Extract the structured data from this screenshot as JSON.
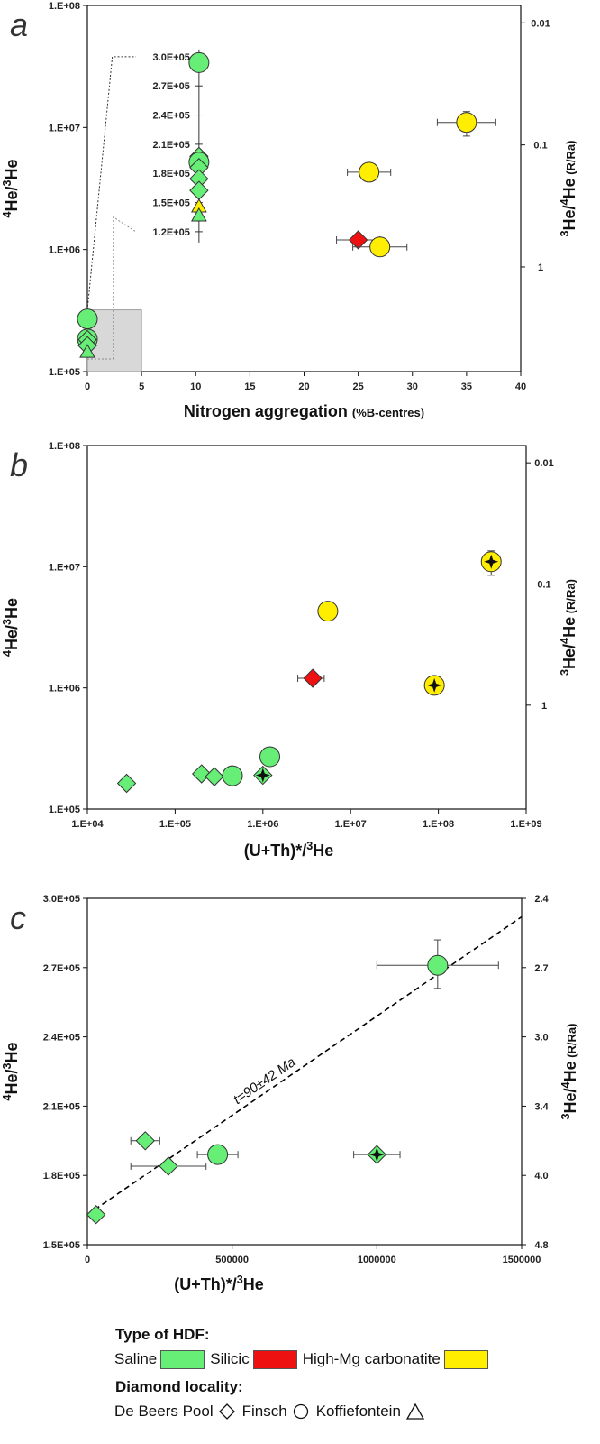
{
  "colors": {
    "saline": "#66EE77",
    "silicic": "#EE1111",
    "carbonatite": "#FFEE00",
    "shaded_box": "#D8D8D8",
    "dashed_line": "#000000"
  },
  "chart_data": [
    {
      "panel": "a",
      "type": "scatter",
      "xlabel_main": "Nitrogen aggregation",
      "xlabel_unit": "(%B-centres)",
      "ylabel": "4He/3He",
      "y2label_main": "3He/4He",
      "y2label_unit": "(R/Ra)",
      "xlim": [
        0,
        40
      ],
      "ylim": [
        100000,
        100000000
      ],
      "yscale": "log",
      "x_ticks": [
        "0",
        "5",
        "10",
        "15",
        "20",
        "25",
        "30",
        "35",
        "40"
      ],
      "y_ticks": [
        "1.E+05",
        "1.E+06",
        "1.E+07",
        "1.E+08"
      ],
      "y2_ticks": [
        "0.01",
        "0.1",
        "1"
      ],
      "inset_scale_labels": [
        "3.0E+05",
        "2.7E+05",
        "2.4E+05",
        "2.1E+05",
        "1.8E+05",
        "1.5E+05",
        "1.2E+05"
      ],
      "points": [
        {
          "x": 0,
          "y": 270000,
          "hdf": "saline",
          "locality": "Finsch"
        },
        {
          "x": 0,
          "y": 185000,
          "hdf": "saline",
          "locality": "Finsch"
        },
        {
          "x": 0,
          "y": 183000,
          "hdf": "saline",
          "locality": "De Beers Pool"
        },
        {
          "x": 0,
          "y": 163000,
          "hdf": "saline",
          "locality": "De Beers Pool"
        },
        {
          "x": 0,
          "y": 145000,
          "hdf": "saline",
          "locality": "Koffiefontein"
        },
        {
          "x": 10.3,
          "y": 34000000,
          "hdf": "saline",
          "locality": "Finsch"
        },
        {
          "x": 10.3,
          "y": 5800000,
          "hdf": "saline",
          "locality": "De Beers Pool"
        },
        {
          "x": 10.3,
          "y": 5200000,
          "hdf": "saline",
          "locality": "Finsch"
        },
        {
          "x": 10.3,
          "y": 4700000,
          "hdf": "saline",
          "locality": "De Beers Pool"
        },
        {
          "x": 10.3,
          "y": 3800000,
          "hdf": "saline",
          "locality": "De Beers Pool"
        },
        {
          "x": 10.3,
          "y": 3050000,
          "hdf": "saline",
          "locality": "De Beers Pool"
        },
        {
          "x": 10.3,
          "y": 2250000,
          "hdf": "carbonatite",
          "locality": "Koffiefontein"
        },
        {
          "x": 10.3,
          "y": 1900000,
          "hdf": "saline",
          "locality": "Koffiefontein"
        },
        {
          "x": 25,
          "y": 1200000,
          "hdf": "silicic",
          "locality": "De Beers Pool",
          "xerr": 2
        },
        {
          "x": 26,
          "y": 4300000,
          "hdf": "carbonatite",
          "locality": "Finsch",
          "xerr": 2
        },
        {
          "x": 27,
          "y": 1050000,
          "hdf": "carbonatite",
          "locality": "Finsch",
          "xerr": 2.5
        },
        {
          "x": 35,
          "y": 11000000,
          "hdf": "carbonatite",
          "locality": "Finsch",
          "xerr": 2.7,
          "yerr": [
            8500000,
            13500000
          ]
        }
      ]
    },
    {
      "panel": "b",
      "type": "scatter",
      "xlabel": "(U+Th)*/3He",
      "ylabel": "4He/3He",
      "y2label_main": "3He/4He",
      "y2label_unit": "(R/Ra)",
      "xscale": "log",
      "yscale": "log",
      "xlim": [
        10000,
        1000000000
      ],
      "ylim": [
        100000,
        100000000
      ],
      "x_ticks": [
        "1.E+04",
        "1.E+05",
        "1.E+06",
        "1.E+07",
        "1.E+08",
        "1.E+09"
      ],
      "y_ticks": [
        "1.E+05",
        "1.E+06",
        "1.E+07",
        "1.E+08"
      ],
      "y2_ticks": [
        "0.01",
        "0.1",
        "1"
      ],
      "points": [
        {
          "x": 28000,
          "y": 163000,
          "hdf": "saline",
          "locality": "De Beers Pool"
        },
        {
          "x": 200000,
          "y": 195000,
          "hdf": "saline",
          "locality": "De Beers Pool"
        },
        {
          "x": 280000,
          "y": 185000,
          "hdf": "saline",
          "locality": "De Beers Pool"
        },
        {
          "x": 450000,
          "y": 188000,
          "hdf": "saline",
          "locality": "Finsch"
        },
        {
          "x": 1000000,
          "y": 190000,
          "hdf": "saline",
          "locality": "De Beers Pool",
          "star": true
        },
        {
          "x": 1200000,
          "y": 270000,
          "hdf": "saline",
          "locality": "Finsch"
        },
        {
          "x": 3700000,
          "y": 1200000,
          "hdf": "silicic",
          "locality": "De Beers Pool",
          "xerr_log": [
            2500000,
            5000000
          ]
        },
        {
          "x": 5500000,
          "y": 4300000,
          "hdf": "carbonatite",
          "locality": "Finsch"
        },
        {
          "x": 90000000,
          "y": 1050000,
          "hdf": "carbonatite",
          "locality": "Finsch",
          "star": true
        },
        {
          "x": 400000000,
          "y": 11000000,
          "hdf": "carbonatite",
          "locality": "Finsch",
          "star": true,
          "yerr": [
            8500000,
            13500000
          ]
        }
      ]
    },
    {
      "panel": "c",
      "type": "scatter",
      "xlabel": "(U+Th)*/3He",
      "ylabel": "4He/3He",
      "y2label_main": "3He/4He",
      "y2label_unit": "(R/Ra)",
      "xlim": [
        0,
        1500000
      ],
      "ylim": [
        150000,
        300000
      ],
      "x_ticks": [
        "0",
        "500000",
        "1000000",
        "1500000"
      ],
      "y_ticks": [
        "1.5E+05",
        "1.8E+05",
        "2.1E+05",
        "2.4E+05",
        "2.7E+05",
        "3.0E+05"
      ],
      "y2_ticks": [
        "2.4",
        "2.7",
        "3.0",
        "3.4",
        "4.0",
        "4.8"
      ],
      "fit_line": {
        "x": [
          0,
          1500000
        ],
        "y": [
          163000,
          292000
        ],
        "label": "t=90±42 Ma"
      },
      "points": [
        {
          "x": 30000,
          "y": 163000,
          "hdf": "saline",
          "locality": "De Beers Pool"
        },
        {
          "x": 200000,
          "y": 195000,
          "hdf": "saline",
          "locality": "De Beers Pool",
          "xerr": 50000
        },
        {
          "x": 280000,
          "y": 184000,
          "hdf": "saline",
          "locality": "De Beers Pool",
          "xerr": 130000
        },
        {
          "x": 450000,
          "y": 189000,
          "hdf": "saline",
          "locality": "Finsch",
          "xerr": 70000
        },
        {
          "x": 1000000,
          "y": 189000,
          "hdf": "saline",
          "locality": "De Beers Pool",
          "star": true,
          "xerr": 80000
        },
        {
          "x": 1210000,
          "y": 271000,
          "hdf": "saline",
          "locality": "Finsch",
          "xerr": 210000,
          "yerr": [
            261000,
            282000
          ]
        }
      ]
    }
  ],
  "legend": {
    "hdf_title": "Type of HDF:",
    "hdf_items": [
      {
        "label": "Saline",
        "color": "#66EE77"
      },
      {
        "label": "Silicic",
        "color": "#EE1111"
      },
      {
        "label": "High-Mg carbonatite",
        "color": "#FFEE00"
      }
    ],
    "locality_title": "Diamond locality:",
    "locality_items": [
      {
        "label": "De Beers Pool",
        "shape": "diamond"
      },
      {
        "label": "Finsch",
        "shape": "circle"
      },
      {
        "label": "Koffiefontein",
        "shape": "triangle"
      }
    ]
  }
}
